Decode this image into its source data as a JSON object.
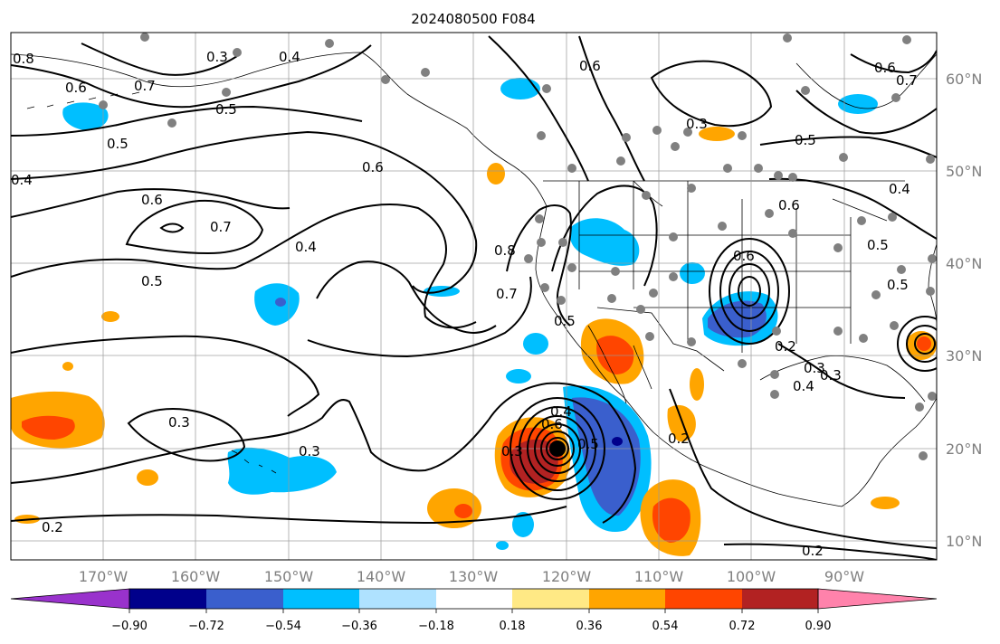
{
  "title": "2024080500 F084",
  "chart_data": {
    "type": "contour-map",
    "title": "2024080500 F084",
    "projection": "equirectangular",
    "xlim": [
      -180,
      -80
    ],
    "ylim": [
      8,
      65
    ],
    "x_tick_labels": [
      "170°W",
      "160°W",
      "150°W",
      "140°W",
      "130°W",
      "120°W",
      "110°W",
      "100°W",
      "90°W"
    ],
    "x_ticks": [
      -170,
      -160,
      -150,
      -140,
      -130,
      -120,
      -110,
      -100,
      -90
    ],
    "y_tick_labels": [
      "10°N",
      "20°N",
      "30°N",
      "40°N",
      "50°N",
      "60°N"
    ],
    "y_ticks": [
      10,
      20,
      30,
      40,
      50,
      60
    ],
    "gridlines": true,
    "colorbar": {
      "orientation": "horizontal",
      "boundaries": [
        -1.08,
        -0.9,
        -0.72,
        -0.54,
        -0.36,
        -0.18,
        0.18,
        0.36,
        0.54,
        0.72,
        0.9,
        1.08
      ],
      "tick_labels": [
        "−0.90",
        "−0.72",
        "−0.54",
        "−0.36",
        "−0.18",
        "0.18",
        "0.36",
        "0.54",
        "0.72",
        "0.90"
      ],
      "colors": [
        "#9932cc",
        "#00008b",
        "#3a5fcd",
        "#00bfff",
        "#afe2ff",
        "#ffffff",
        "#ffe985",
        "#ffa500",
        "#ff4500",
        "#b22222",
        "#ff82ab"
      ],
      "extend": "both"
    },
    "contour_labels": [
      "0.8",
      "0.3",
      "0.4",
      "0.6",
      "0.7",
      "0.5",
      "0.5",
      "0.4",
      "0.6",
      "0.6",
      "0.7",
      "0.4",
      "0.5",
      "0.8",
      "0.7",
      "0.5",
      "0.3",
      "0.3",
      "0.2",
      "0.4",
      "0.6",
      "0.3",
      "0.5",
      "0.2",
      "0.3",
      "0.6",
      "0.5",
      "0.6",
      "0.6",
      "0.5",
      "0.4",
      "0.7",
      "0.3",
      "0.5",
      "0.6",
      "0.2",
      "0.4",
      "0.3",
      "0.2"
    ],
    "shaded_features": [
      {
        "name": "cyclone-warm-core",
        "lon": -121,
        "lat": 20,
        "value": 0.72
      },
      {
        "name": "cyclone-cold-east",
        "lon": -114.5,
        "lat": 19,
        "value": -0.6
      },
      {
        "name": "gulf-california-warm",
        "lon": -113.5,
        "lat": 32,
        "value": 0.6
      },
      {
        "name": "mexico-coast-warm",
        "lon": -108.5,
        "lat": 12.5,
        "value": 0.62
      },
      {
        "name": "plains-cold",
        "lon": -98.5,
        "lat": 34.5,
        "value": -0.6
      },
      {
        "name": "west-warm",
        "lon": -176,
        "lat": 21.5,
        "value": 0.5
      },
      {
        "name": "subtropic-warm",
        "lon": -128.5,
        "lat": 13.5,
        "value": 0.5
      },
      {
        "name": "east-coast-warm",
        "lon": -81,
        "lat": 30.5,
        "value": 0.55
      }
    ],
    "markers": [
      {
        "name": "storm-center",
        "lon": -121,
        "lat": 20
      }
    ]
  }
}
